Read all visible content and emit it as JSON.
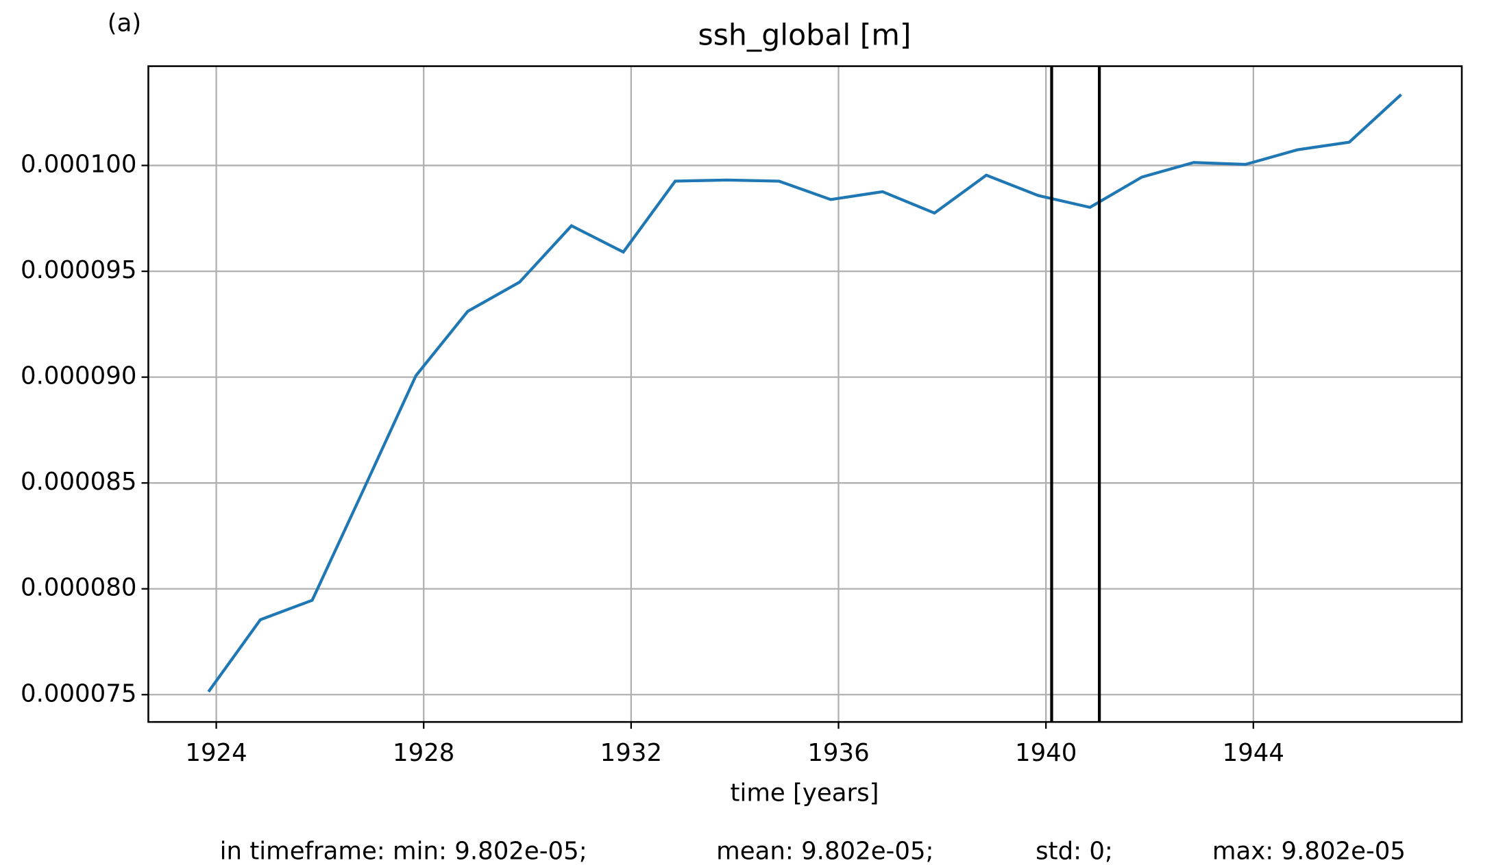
{
  "chart_data": {
    "type": "line",
    "panel_label": "(a)",
    "title": "ssh_global [m]",
    "x_label": "time [years]",
    "footer": [
      "in timeframe: min: 9.802e-05;",
      "mean: 9.802e-05;",
      "std: 0;",
      "max: 9.802e-05"
    ],
    "x": [
      1923.85,
      1924.85,
      1925.85,
      1926.85,
      1927.85,
      1928.85,
      1929.85,
      1930.85,
      1931.85,
      1932.85,
      1933.85,
      1934.85,
      1935.85,
      1936.85,
      1937.85,
      1938.85,
      1939.85,
      1940.85,
      1941.85,
      1942.85,
      1943.85,
      1944.85,
      1945.85,
      1946.85
    ],
    "series": [
      {
        "name": "ssh_global",
        "color": "#1f77b4",
        "values": [
          7.514e-05,
          7.854e-05,
          7.946e-05,
          8.474e-05,
          9.007e-05,
          9.311e-05,
          9.449e-05,
          9.715e-05,
          9.591e-05,
          9.926e-05,
          9.931e-05,
          9.926e-05,
          9.839e-05,
          9.876e-05,
          9.775e-05,
          9.954e-05,
          9.858e-05,
          9.802e-05,
          9.945e-05,
          0.00010014,
          0.00010005,
          0.00010074,
          0.0001011,
          0.00010335
        ]
      }
    ],
    "vlines": [
      1940.11,
      1941.03
    ],
    "vline_color": "#000000",
    "xlim": [
      1922.69,
      1948.02
    ],
    "xticks": [
      1924,
      1928,
      1932,
      1936,
      1940,
      1944
    ],
    "ylim": [
      7.371e-05,
      0.00010469
    ],
    "yticks": [
      {
        "value": 7.5e-05,
        "label": "0.000075"
      },
      {
        "value": 8e-05,
        "label": "0.000080"
      },
      {
        "value": 8.5e-05,
        "label": "0.000085"
      },
      {
        "value": 9e-05,
        "label": "0.000090"
      },
      {
        "value": 9.5e-05,
        "label": "0.000095"
      },
      {
        "value": 0.0001,
        "label": "0.000100"
      }
    ],
    "grid": true
  }
}
